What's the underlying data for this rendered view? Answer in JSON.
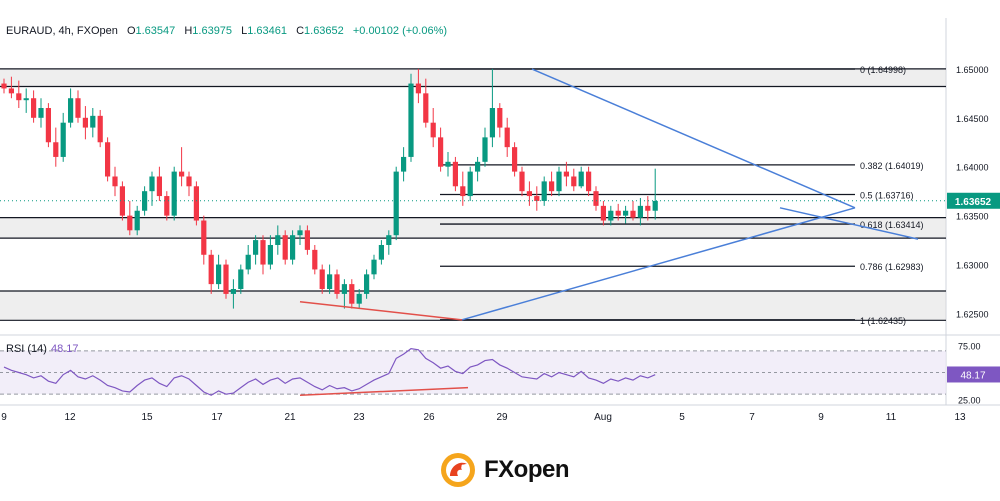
{
  "header": {
    "symbol": "EURAUD, 4h, FXOpen",
    "open_label": "O",
    "open": "1.63547",
    "high_label": "H",
    "high": "1.63975",
    "low_label": "L",
    "low": "1.63461",
    "close_label": "C",
    "close": "1.63652",
    "change": "+0.00102 (+0.06%)"
  },
  "rsi_header": {
    "label": "RSI (14)",
    "value": "48.17"
  },
  "colors": {
    "up": "#089981",
    "down": "#f23645",
    "trendline": "#4a7fd8",
    "divergence": "#e2504a",
    "rsi": "#7e57c2",
    "zone": "#d9d9d9",
    "rsi_band": "#ede7f6"
  },
  "chart_data": [
    {
      "type": "candlestick",
      "title": "EURAUD, 4h, FXOpen",
      "ylim": [
        1.6228,
        1.6552
      ],
      "price_axis_ticks": [
        "1.65000",
        "1.64500",
        "1.64000",
        "1.63500",
        "1.63000",
        "1.62500"
      ],
      "last_price_tag": "1.63652",
      "x_ticks": [
        "9",
        "12",
        "15",
        "17",
        "21",
        "23",
        "26",
        "29",
        "Aug",
        "5",
        "7",
        "9",
        "11",
        "13"
      ],
      "fibonacci": [
        {
          "label": "0 (1.64998)",
          "level": 1.64998
        },
        {
          "label": "0.382 (1.64019)",
          "level": 1.64019
        },
        {
          "label": "0.5 (1.63716)",
          "level": 1.63716
        },
        {
          "label": "0.618 (1.63414)",
          "level": 1.63414
        },
        {
          "label": "0.786 (1.62983)",
          "level": 1.62983
        },
        {
          "label": "1 (1.62435)",
          "level": 1.62435
        }
      ],
      "zones": [
        [
          1.6482,
          1.65
        ],
        [
          1.6327,
          1.6348
        ],
        [
          1.6243,
          1.6273
        ]
      ],
      "candles": [
        [
          1.6485,
          1.649,
          1.6475,
          1.648
        ],
        [
          1.648,
          1.6492,
          1.647,
          1.6475
        ],
        [
          1.6475,
          1.6488,
          1.646,
          1.6468
        ],
        [
          1.6468,
          1.648,
          1.6455,
          1.647
        ],
        [
          1.647,
          1.6478,
          1.6445,
          1.645
        ],
        [
          1.645,
          1.647,
          1.644,
          1.646
        ],
        [
          1.646,
          1.6465,
          1.642,
          1.6425
        ],
        [
          1.6425,
          1.644,
          1.64,
          1.641
        ],
        [
          1.641,
          1.6455,
          1.6405,
          1.6445
        ],
        [
          1.6445,
          1.648,
          1.644,
          1.647
        ],
        [
          1.647,
          1.6478,
          1.6445,
          1.645
        ],
        [
          1.645,
          1.6462,
          1.6428,
          1.644
        ],
        [
          1.644,
          1.646,
          1.643,
          1.6452
        ],
        [
          1.6452,
          1.6458,
          1.642,
          1.6425
        ],
        [
          1.6425,
          1.643,
          1.6385,
          1.639
        ],
        [
          1.639,
          1.64,
          1.637,
          1.638
        ],
        [
          1.638,
          1.6385,
          1.6345,
          1.635
        ],
        [
          1.635,
          1.6365,
          1.633,
          1.6335
        ],
        [
          1.6335,
          1.636,
          1.633,
          1.6355
        ],
        [
          1.6355,
          1.638,
          1.635,
          1.6375
        ],
        [
          1.6375,
          1.6395,
          1.636,
          1.639
        ],
        [
          1.639,
          1.64,
          1.6365,
          1.637
        ],
        [
          1.637,
          1.6375,
          1.6345,
          1.635
        ],
        [
          1.635,
          1.64,
          1.6345,
          1.6395
        ],
        [
          1.6395,
          1.642,
          1.638,
          1.639
        ],
        [
          1.639,
          1.6395,
          1.637,
          1.638
        ],
        [
          1.638,
          1.6385,
          1.634,
          1.6345
        ],
        [
          1.6345,
          1.635,
          1.63,
          1.631
        ],
        [
          1.631,
          1.6315,
          1.627,
          1.628
        ],
        [
          1.628,
          1.631,
          1.6275,
          1.63
        ],
        [
          1.63,
          1.6305,
          1.6265,
          1.627
        ],
        [
          1.627,
          1.6285,
          1.6255,
          1.6275
        ],
        [
          1.6275,
          1.63,
          1.627,
          1.6295
        ],
        [
          1.6295,
          1.632,
          1.629,
          1.631
        ],
        [
          1.631,
          1.633,
          1.63,
          1.6325
        ],
        [
          1.6325,
          1.633,
          1.629,
          1.63
        ],
        [
          1.63,
          1.633,
          1.6295,
          1.632
        ],
        [
          1.632,
          1.634,
          1.631,
          1.633
        ],
        [
          1.633,
          1.6335,
          1.63,
          1.6305
        ],
        [
          1.6305,
          1.6335,
          1.63,
          1.633
        ],
        [
          1.633,
          1.634,
          1.632,
          1.6335
        ],
        [
          1.6335,
          1.634,
          1.631,
          1.6315
        ],
        [
          1.6315,
          1.632,
          1.629,
          1.6295
        ],
        [
          1.6295,
          1.63,
          1.627,
          1.6275
        ],
        [
          1.6275,
          1.63,
          1.627,
          1.629
        ],
        [
          1.629,
          1.6295,
          1.6265,
          1.627
        ],
        [
          1.627,
          1.6285,
          1.6255,
          1.628
        ],
        [
          1.628,
          1.6285,
          1.6255,
          1.626
        ],
        [
          1.626,
          1.6275,
          1.6255,
          1.627
        ],
        [
          1.627,
          1.6295,
          1.6265,
          1.629
        ],
        [
          1.629,
          1.631,
          1.6285,
          1.6305
        ],
        [
          1.6305,
          1.6325,
          1.63,
          1.632
        ],
        [
          1.632,
          1.6335,
          1.631,
          1.633
        ],
        [
          1.633,
          1.64,
          1.6325,
          1.6395
        ],
        [
          1.6395,
          1.642,
          1.6385,
          1.641
        ],
        [
          1.641,
          1.6495,
          1.6405,
          1.6485
        ],
        [
          1.6485,
          1.65,
          1.6465,
          1.6475
        ],
        [
          1.6475,
          1.649,
          1.644,
          1.6445
        ],
        [
          1.6445,
          1.646,
          1.642,
          1.643
        ],
        [
          1.643,
          1.644,
          1.6395,
          1.64
        ],
        [
          1.64,
          1.6415,
          1.639,
          1.6405
        ],
        [
          1.6405,
          1.641,
          1.6375,
          1.638
        ],
        [
          1.638,
          1.6395,
          1.636,
          1.637
        ],
        [
          1.637,
          1.64,
          1.6365,
          1.6395
        ],
        [
          1.6395,
          1.641,
          1.6385,
          1.6405
        ],
        [
          1.6405,
          1.644,
          1.64,
          1.643
        ],
        [
          1.643,
          1.65,
          1.642,
          1.646
        ],
        [
          1.646,
          1.6465,
          1.643,
          1.644
        ],
        [
          1.644,
          1.645,
          1.641,
          1.642
        ],
        [
          1.642,
          1.6425,
          1.639,
          1.6395
        ],
        [
          1.6395,
          1.64,
          1.637,
          1.6375
        ],
        [
          1.6375,
          1.6385,
          1.636,
          1.637
        ],
        [
          1.637,
          1.638,
          1.6355,
          1.6365
        ],
        [
          1.6365,
          1.639,
          1.636,
          1.6385
        ],
        [
          1.6385,
          1.6395,
          1.637,
          1.6375
        ],
        [
          1.6375,
          1.64,
          1.637,
          1.6395
        ],
        [
          1.6395,
          1.6405,
          1.638,
          1.639
        ],
        [
          1.639,
          1.6398,
          1.6375,
          1.638
        ],
        [
          1.638,
          1.64,
          1.6378,
          1.6395
        ],
        [
          1.6395,
          1.64,
          1.637,
          1.6375
        ],
        [
          1.6375,
          1.638,
          1.6355,
          1.636
        ],
        [
          1.636,
          1.6365,
          1.634,
          1.6345
        ],
        [
          1.6345,
          1.636,
          1.634,
          1.6355
        ],
        [
          1.6355,
          1.6362,
          1.6345,
          1.635
        ],
        [
          1.635,
          1.636,
          1.6342,
          1.6355
        ],
        [
          1.6355,
          1.6365,
          1.6345,
          1.6348
        ],
        [
          1.6348,
          1.6368,
          1.634,
          1.636
        ],
        [
          1.636,
          1.637,
          1.6345,
          1.6355
        ],
        [
          1.6355,
          1.6398,
          1.6346,
          1.6365
        ]
      ]
    },
    {
      "type": "line",
      "title": "RSI (14)",
      "ylim": [
        20,
        80
      ],
      "y_ticks": [
        "75.00",
        "25.00"
      ],
      "band": [
        30,
        70
      ],
      "last_value": "48.17",
      "values": [
        55,
        52,
        50,
        48,
        45,
        47,
        42,
        40,
        48,
        52,
        46,
        44,
        47,
        43,
        38,
        36,
        33,
        32,
        38,
        43,
        45,
        40,
        37,
        45,
        47,
        44,
        38,
        32,
        29,
        33,
        30,
        31,
        36,
        41,
        44,
        39,
        43,
        45,
        40,
        44,
        45,
        41,
        37,
        34,
        38,
        35,
        36,
        33,
        35,
        39,
        43,
        46,
        49,
        63,
        67,
        72,
        71,
        63,
        59,
        54,
        56,
        51,
        49,
        55,
        57,
        61,
        62,
        57,
        54,
        50,
        46,
        45,
        44,
        49,
        46,
        50,
        48,
        46,
        51,
        45,
        43,
        40,
        44,
        42,
        45,
        43,
        47,
        45,
        48
      ]
    }
  ],
  "logo": {
    "text": "FXopen",
    "icon": "fxopen-dragon-icon"
  }
}
